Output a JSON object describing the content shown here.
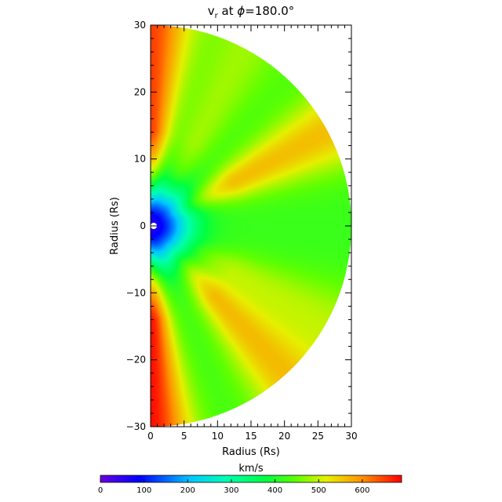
{
  "chart_data": {
    "type": "heatmap",
    "title_main": "v",
    "title_sub": "r",
    "title_rest": " at ",
    "title_phi": "ϕ",
    "title_value": "=180.0°",
    "xlabel": "Radius (Rs)",
    "ylabel": "Radius (Rs)",
    "xlim": [
      0,
      30
    ],
    "ylim": [
      -30,
      30
    ],
    "x_ticks": [
      "0",
      "5",
      "10",
      "15",
      "20",
      "25",
      "30"
    ],
    "y_ticks": [
      "30",
      "20",
      "10",
      "0",
      "−10",
      "−20",
      "−30"
    ],
    "colorbar": {
      "label": "km/s",
      "ticks": [
        "0",
        "100",
        "200",
        "300",
        "400",
        "500",
        "600"
      ],
      "range": [
        0,
        690
      ]
    },
    "region": "half-disk, radius 30 Rs, inner radius 1 Rs",
    "streamers": [
      {
        "angle_deg": 90,
        "velocity_kms": 650
      },
      {
        "angle_deg": 62,
        "velocity_kms": 480
      },
      {
        "angle_deg": 28,
        "velocity_kms": 560
      },
      {
        "angle_deg": -28,
        "velocity_kms": 490
      },
      {
        "angle_deg": -48,
        "velocity_kms": 560
      },
      {
        "angle_deg": -90,
        "velocity_kms": 680
      }
    ],
    "background_velocity_kms": 420,
    "slow_core": {
      "radius_rs": 4,
      "velocity_kms": 60
    }
  }
}
